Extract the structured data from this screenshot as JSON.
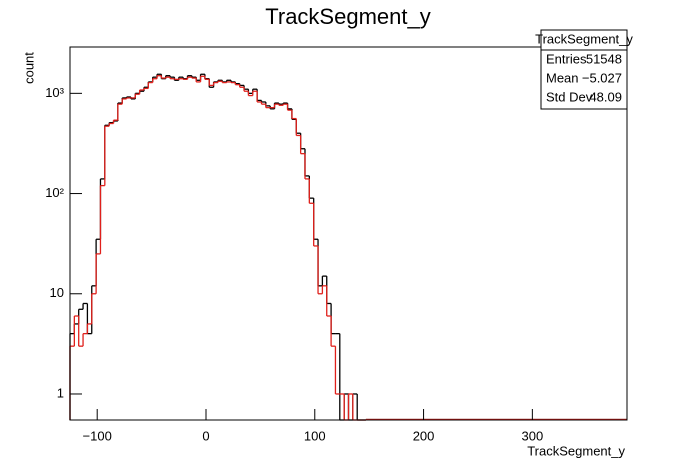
{
  "chart_data": {
    "type": "histogram",
    "title": "TrackSegment_y",
    "x_label": "TrackSegment_y",
    "y_label": "count",
    "log_y": true,
    "xlim": [
      -125,
      387
    ],
    "ylim": [
      0.55,
      2900
    ],
    "xticks": [
      {
        "value": -100,
        "label": "−100"
      },
      0,
      100,
      200,
      300
    ],
    "yticks": [
      1,
      10,
      {
        "value": 100,
        "label": "10²"
      },
      {
        "value": 1000,
        "label": "10³"
      }
    ],
    "bins": [
      -125,
      -121,
      -117,
      -113,
      -109,
      -105,
      -101,
      -97,
      -93,
      -89,
      -85,
      -81,
      -77,
      -73,
      -69,
      -65,
      -61,
      -57,
      -53,
      -49,
      -45,
      -41,
      -37,
      -33,
      -29,
      -25,
      -21,
      -17,
      -13,
      -9,
      -5,
      -1,
      3,
      7,
      11,
      15,
      19,
      23,
      27,
      31,
      35,
      39,
      43,
      47,
      51,
      55,
      59,
      63,
      67,
      71,
      75,
      79,
      83,
      87,
      91,
      95,
      99,
      103,
      107,
      111,
      115,
      119,
      123,
      127,
      131,
      135,
      139,
      143,
      147
    ],
    "series": [
      {
        "color": "#000000",
        "values": [
          4,
          5,
          7,
          8,
          4,
          12,
          35,
          140,
          480,
          510,
          530,
          800,
          900,
          920,
          880,
          1000,
          1050,
          1150,
          1300,
          1450,
          1550,
          1400,
          1500,
          1450,
          1350,
          1450,
          1400,
          1500,
          1450,
          1350,
          1550,
          1400,
          1150,
          1300,
          1350,
          1300,
          1350,
          1300,
          1250,
          1200,
          1100,
          1000,
          1100,
          850,
          820,
          750,
          700,
          800,
          780,
          800,
          700,
          550,
          400,
          280,
          150,
          90,
          35,
          12,
          15,
          8,
          4,
          4,
          0,
          1,
          0,
          1,
          0,
          0
        ]
      },
      {
        "color": "#e0201b",
        "values": [
          3,
          6,
          3,
          4,
          5,
          10,
          25,
          120,
          470,
          500,
          540,
          780,
          880,
          900,
          900,
          980,
          1080,
          1120,
          1280,
          1400,
          1500,
          1420,
          1450,
          1400,
          1380,
          1400,
          1380,
          1450,
          1420,
          1300,
          1480,
          1380,
          1200,
          1280,
          1320,
          1280,
          1300,
          1280,
          1220,
          1150,
          1050,
          950,
          1050,
          820,
          780,
          720,
          720,
          780,
          760,
          780,
          680,
          560,
          380,
          250,
          140,
          80,
          30,
          10,
          12,
          6,
          3,
          1,
          1,
          0,
          1,
          0,
          0,
          0
        ]
      }
    ],
    "stats_box": {
      "title": "TrackSegment_y",
      "rows": [
        [
          "Entries",
          "51548"
        ],
        [
          "Mean",
          "−5.027"
        ],
        [
          "Std Dev",
          "48.09"
        ]
      ]
    }
  }
}
